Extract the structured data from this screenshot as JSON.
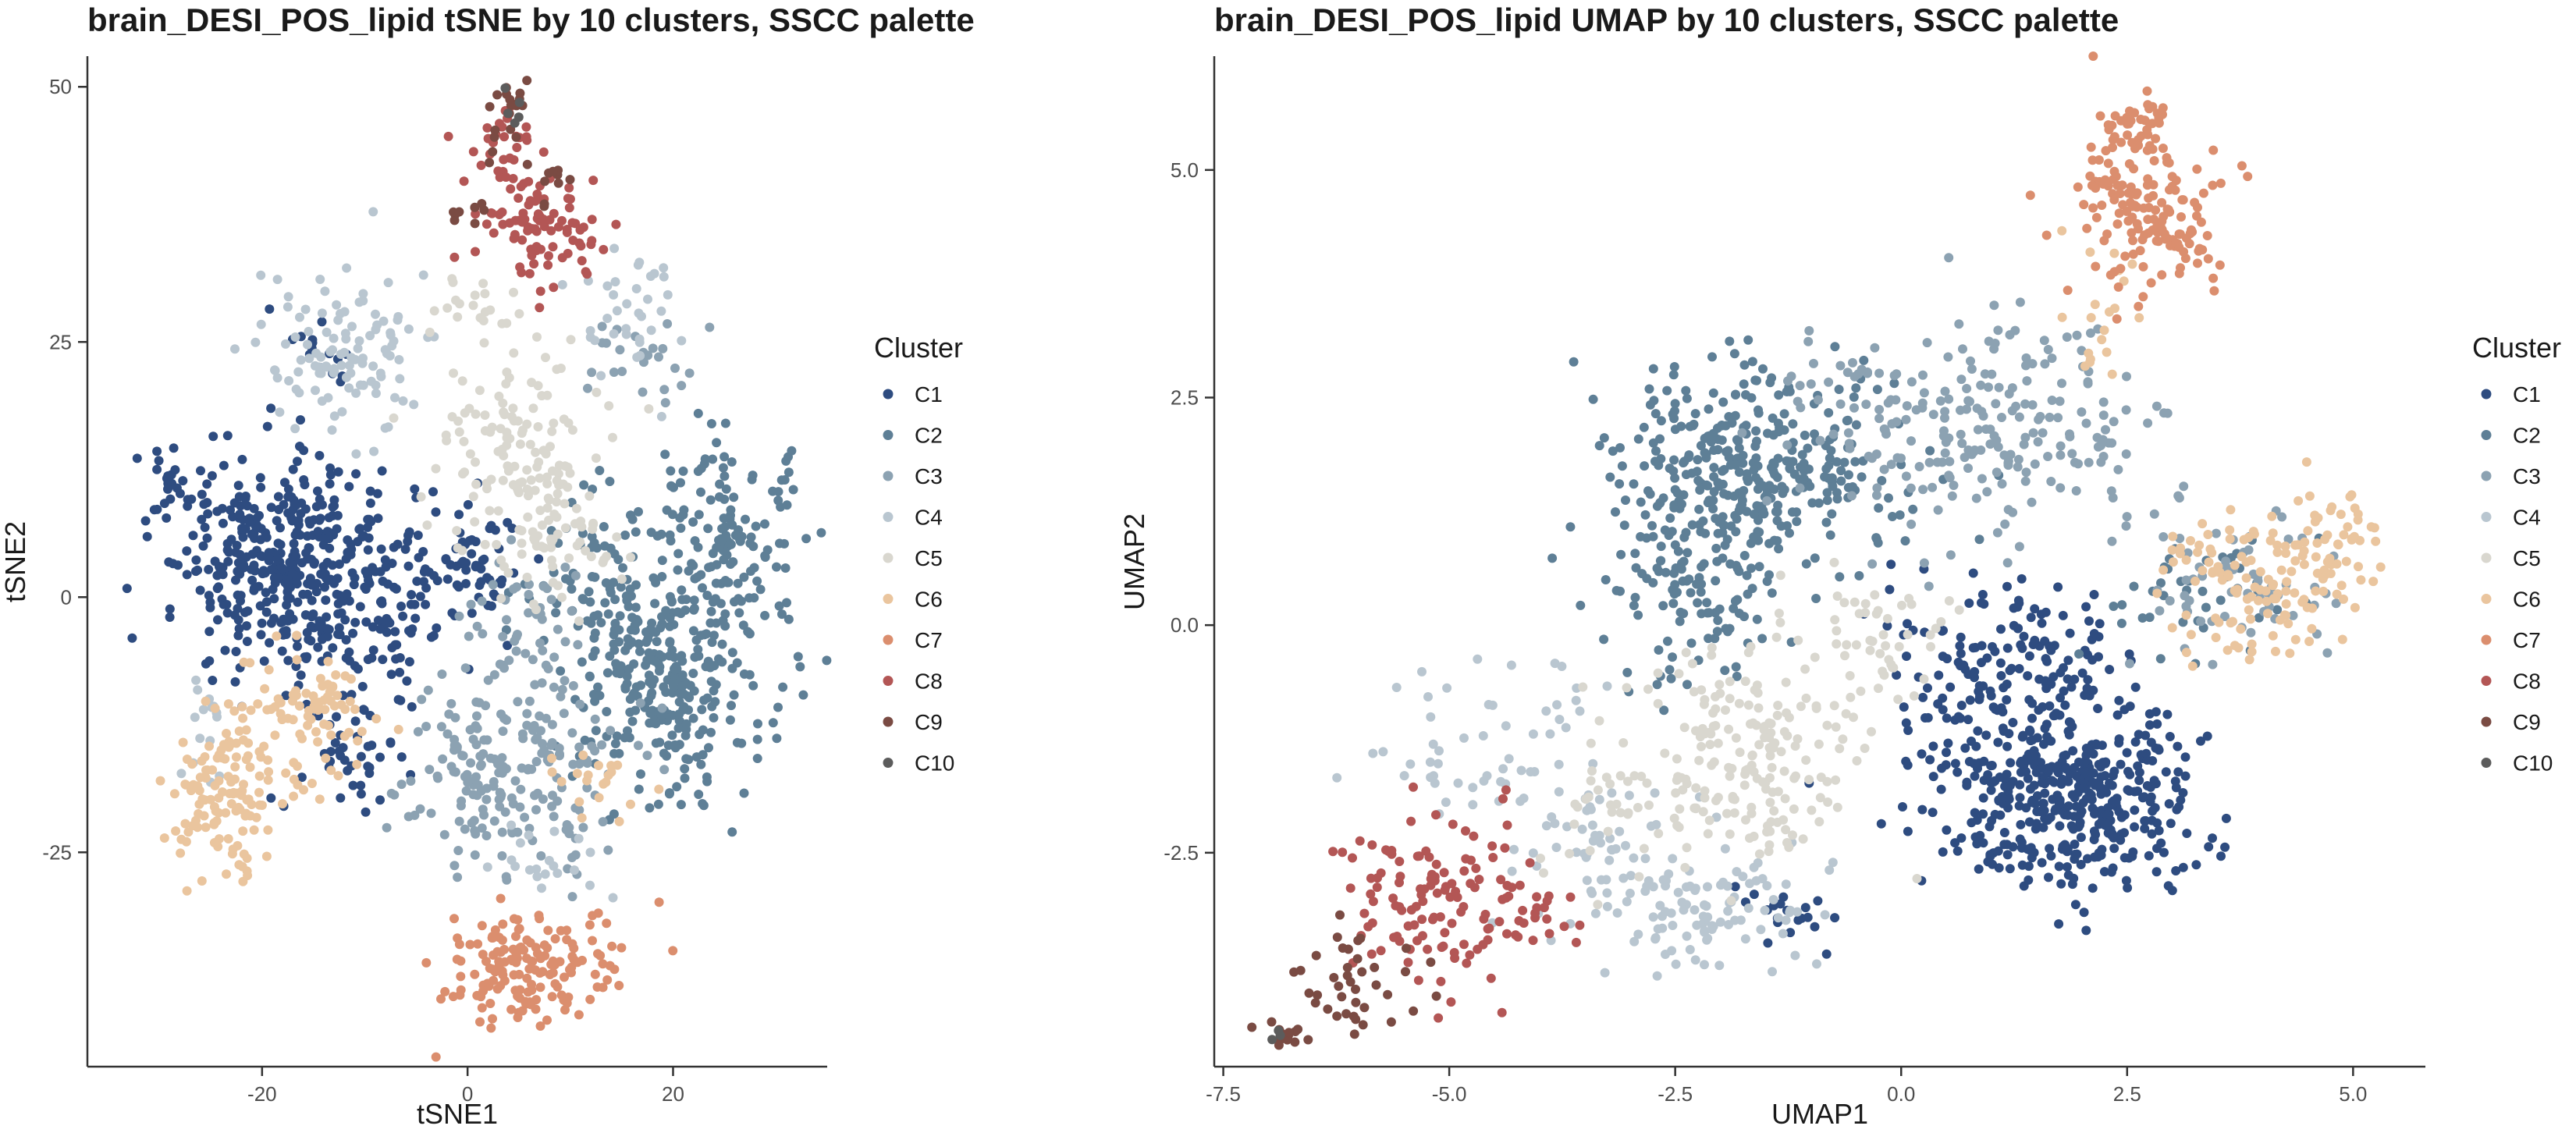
{
  "chart_data": [
    {
      "type": "scatter",
      "title": "brain_DESI_POS_lipid tSNE by 10 clusters, SSCC palette",
      "xlabel": "tSNE1",
      "ylabel": "tSNE2",
      "xlim": [
        -37,
        35
      ],
      "ylim": [
        -46,
        53
      ],
      "xticks": [
        -20,
        0,
        20
      ],
      "yticks": [
        -25,
        0,
        25,
        50
      ],
      "xtick_labels": [
        "-20",
        "0",
        "20"
      ],
      "ytick_labels": [
        "-25",
        "0",
        "25",
        "50"
      ],
      "grid": false,
      "legend": {
        "title": "Cluster",
        "position": "right"
      },
      "series": [
        {
          "name": "C1",
          "color": "#2E4C80",
          "clusters": [
            {
              "cx": -18,
              "cy": 3,
              "sx": 5,
              "sy": 5,
              "n": 380
            },
            {
              "cx": -8,
              "cy": -2,
              "sx": 4,
              "sy": 5,
              "n": 90
            },
            {
              "cx": -29,
              "cy": 11,
              "sx": 1.5,
              "sy": 1.5,
              "n": 25
            },
            {
              "cx": -11,
              "cy": -15,
              "sx": 3,
              "sy": 3,
              "n": 40
            },
            {
              "cx": 0,
              "cy": 3,
              "sx": 3,
              "sy": 3,
              "n": 60
            },
            {
              "cx": -14,
              "cy": 24,
              "sx": 2,
              "sy": 2,
              "n": 15
            }
          ]
        },
        {
          "name": "C2",
          "color": "#5E7F96",
          "clusters": [
            {
              "cx": 20,
              "cy": -8,
              "sx": 5,
              "sy": 6,
              "n": 280
            },
            {
              "cx": 24,
              "cy": 5,
              "sx": 4,
              "sy": 5,
              "n": 160
            },
            {
              "cx": 12,
              "cy": 2,
              "sx": 3,
              "sy": 4,
              "n": 60
            }
          ]
        },
        {
          "name": "C3",
          "color": "#8CA2B2",
          "clusters": [
            {
              "cx": 4,
              "cy": -17,
              "sx": 5,
              "sy": 5,
              "n": 200
            },
            {
              "cx": 5,
              "cy": -3,
              "sx": 3,
              "sy": 4,
              "n": 50
            },
            {
              "cx": 17,
              "cy": 24,
              "sx": 3,
              "sy": 3,
              "n": 25
            }
          ]
        },
        {
          "name": "C4",
          "color": "#B9C6D0",
          "clusters": [
            {
              "cx": -12,
              "cy": 24,
              "sx": 4,
              "sy": 4,
              "n": 110
            },
            {
              "cx": 16,
              "cy": 28,
              "sx": 3,
              "sy": 3,
              "n": 35
            },
            {
              "cx": -25,
              "cy": -12,
              "sx": 2,
              "sy": 3,
              "n": 15
            },
            {
              "cx": 8,
              "cy": -26,
              "sx": 3,
              "sy": 2,
              "n": 20
            }
          ]
        },
        {
          "name": "C5",
          "color": "#D9D7CF",
          "clusters": [
            {
              "cx": 4,
              "cy": 15,
              "sx": 4,
              "sy": 5,
              "n": 130
            },
            {
              "cx": 9,
              "cy": 5,
              "sx": 3,
              "sy": 3,
              "n": 50
            },
            {
              "cx": 0,
              "cy": 28,
              "sx": 3,
              "sy": 2,
              "n": 20
            }
          ]
        },
        {
          "name": "C6",
          "color": "#EAC59E",
          "clusters": [
            {
              "cx": -23,
              "cy": -19,
              "sx": 3,
              "sy": 4,
              "n": 130
            },
            {
              "cx": -16,
              "cy": -11,
              "sx": 3,
              "sy": 3,
              "n": 80
            },
            {
              "cx": 13,
              "cy": -18,
              "sx": 3,
              "sy": 2,
              "n": 20
            }
          ]
        },
        {
          "name": "C7",
          "color": "#DB8E6E",
          "clusters": [
            {
              "cx": 6,
              "cy": -36,
              "sx": 4,
              "sy": 3,
              "n": 160
            }
          ]
        },
        {
          "name": "C8",
          "color": "#B35655",
          "clusters": [
            {
              "cx": 7,
              "cy": 37,
              "sx": 3,
              "sy": 3,
              "n": 90
            },
            {
              "cx": 3,
              "cy": 44,
              "sx": 2,
              "sy": 2,
              "n": 30
            }
          ]
        },
        {
          "name": "C9",
          "color": "#7A4B43",
          "clusters": [
            {
              "cx": 4,
              "cy": 47,
              "sx": 1.5,
              "sy": 2,
              "n": 20
            },
            {
              "cx": 8,
              "cy": 41,
              "sx": 1.5,
              "sy": 1.5,
              "n": 10
            },
            {
              "cx": 0,
              "cy": 37,
              "sx": 1.5,
              "sy": 1.5,
              "n": 8
            }
          ]
        },
        {
          "name": "C10",
          "color": "#5C5C5C",
          "clusters": [
            {
              "cx": 5,
              "cy": 48,
              "sx": 1,
              "sy": 1.5,
              "n": 5
            }
          ]
        }
      ]
    },
    {
      "type": "scatter",
      "title": "brain_DESI_POS_lipid UMAP by 10 clusters, SSCC palette",
      "xlabel": "UMAP1",
      "ylabel": "UMAP2",
      "xlim": [
        -7.6,
        5.8
      ],
      "ylim": [
        -4.85,
        6.25
      ],
      "xticks": [
        -7.5,
        -5,
        -2.5,
        0,
        2.5,
        5
      ],
      "yticks": [
        -2.5,
        0,
        2.5,
        5
      ],
      "xtick_labels": [
        "-7.5",
        "-5.0",
        "-2.5",
        "0.0",
        "2.5",
        "5.0"
      ],
      "ytick_labels": [
        "-2.5",
        "0.0",
        "2.5",
        "5.0"
      ],
      "grid": false,
      "legend": {
        "title": "Cluster",
        "position": "right"
      },
      "series": [
        {
          "name": "C1",
          "color": "#2E4C80",
          "clusters": [
            {
              "cx": 1.9,
              "cy": -1.9,
              "sx": 0.7,
              "sy": 0.5,
              "n": 420
            },
            {
              "cx": 1.2,
              "cy": -0.6,
              "sx": 0.7,
              "sy": 0.6,
              "n": 180
            },
            {
              "cx": -1.3,
              "cy": -3.2,
              "sx": 0.3,
              "sy": 0.2,
              "n": 20
            }
          ]
        },
        {
          "name": "C2",
          "color": "#5E7F96",
          "clusters": [
            {
              "cx": -1.6,
              "cy": 1.8,
              "sx": 0.8,
              "sy": 0.6,
              "n": 330
            },
            {
              "cx": -2.3,
              "cy": 0.5,
              "sx": 0.5,
              "sy": 0.6,
              "n": 130
            },
            {
              "cx": 3.3,
              "cy": 0.3,
              "sx": 0.5,
              "sy": 0.4,
              "n": 40
            }
          ]
        },
        {
          "name": "C3",
          "color": "#8CA2B2",
          "clusters": [
            {
              "cx": 1.2,
              "cy": 2.1,
              "sx": 0.8,
              "sy": 0.6,
              "n": 180
            },
            {
              "cx": -0.4,
              "cy": 2.4,
              "sx": 0.5,
              "sy": 0.4,
              "n": 60
            },
            {
              "cx": 3.8,
              "cy": 0.4,
              "sx": 0.6,
              "sy": 0.4,
              "n": 60
            }
          ]
        },
        {
          "name": "C4",
          "color": "#B9C6D0",
          "clusters": [
            {
              "cx": -2.3,
              "cy": -3.1,
              "sx": 0.7,
              "sy": 0.3,
              "n": 110
            },
            {
              "cx": -4.5,
              "cy": -1.4,
              "sx": 0.6,
              "sy": 0.5,
              "n": 60
            },
            {
              "cx": -3.2,
              "cy": -2.3,
              "sx": 0.5,
              "sy": 0.3,
              "n": 40
            }
          ]
        },
        {
          "name": "C5",
          "color": "#D9D7CF",
          "clusters": [
            {
              "cx": -1.7,
              "cy": -1.4,
              "sx": 0.6,
              "sy": 0.6,
              "n": 180
            },
            {
              "cx": -0.3,
              "cy": -0.2,
              "sx": 0.5,
              "sy": 0.4,
              "n": 50
            },
            {
              "cx": -3.0,
              "cy": -1.9,
              "sx": 0.5,
              "sy": 0.4,
              "n": 40
            }
          ]
        },
        {
          "name": "C6",
          "color": "#EAC59E",
          "clusters": [
            {
              "cx": 3.8,
              "cy": 0.4,
              "sx": 0.5,
              "sy": 0.4,
              "n": 110
            },
            {
              "cx": 4.8,
              "cy": 0.9,
              "sx": 0.3,
              "sy": 0.3,
              "n": 50
            },
            {
              "cx": 2.3,
              "cy": 3.5,
              "sx": 0.3,
              "sy": 0.5,
              "n": 20
            }
          ]
        },
        {
          "name": "C7",
          "color": "#DB8E6E",
          "clusters": [
            {
              "cx": 2.6,
              "cy": 4.6,
              "sx": 0.4,
              "sy": 0.5,
              "n": 130
            },
            {
              "cx": 3.1,
              "cy": 4.2,
              "sx": 0.2,
              "sy": 0.3,
              "n": 30
            },
            {
              "cx": 2.6,
              "cy": 5.5,
              "sx": 0.2,
              "sy": 0.15,
              "n": 30
            }
          ]
        },
        {
          "name": "C8",
          "color": "#B35655",
          "clusters": [
            {
              "cx": -5.2,
              "cy": -3.0,
              "sx": 0.5,
              "sy": 0.5,
              "n": 110
            },
            {
              "cx": -4.2,
              "cy": -3.2,
              "sx": 0.3,
              "sy": 0.3,
              "n": 30
            }
          ]
        },
        {
          "name": "C9",
          "color": "#7A4B43",
          "clusters": [
            {
              "cx": -6.0,
              "cy": -3.9,
              "sx": 0.4,
              "sy": 0.35,
              "n": 40
            },
            {
              "cx": -6.8,
              "cy": -4.5,
              "sx": 0.15,
              "sy": 0.1,
              "n": 15
            }
          ]
        },
        {
          "name": "C10",
          "color": "#5C5C5C",
          "clusters": [
            {
              "cx": -6.9,
              "cy": -4.5,
              "sx": 0.05,
              "sy": 0.05,
              "n": 3
            }
          ]
        }
      ]
    }
  ]
}
